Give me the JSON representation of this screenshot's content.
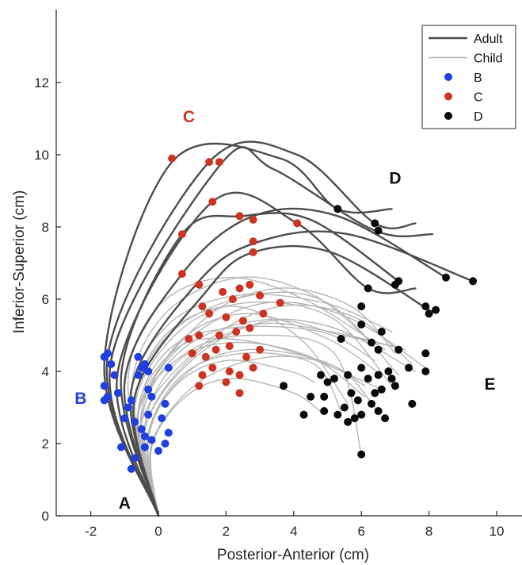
{
  "chart_data": {
    "type": "line",
    "title": "",
    "xlabel": "Posterior-Anterior (cm)",
    "ylabel": "Inferior-Superior (cm)",
    "xlim": [
      -2.9,
      10.8
    ],
    "ylim": [
      0,
      14
    ],
    "xticks": [
      -2,
      0,
      2,
      4,
      6,
      8,
      10
    ],
    "yticks": [
      0,
      2,
      4,
      6,
      8,
      10,
      12
    ],
    "grid": false,
    "legend_position": "top-right",
    "colors": {
      "adult": "#4d4d4d",
      "child": "#b5b5b5",
      "B": "#1f3fe0",
      "C": "#cc3322",
      "D": "#0a0a0a",
      "axis": "#262626"
    },
    "legend": [
      {
        "label": "Adult",
        "kind": "line",
        "color": "#4d4d4d"
      },
      {
        "label": "Child",
        "kind": "line",
        "color": "#b5b5b5"
      },
      {
        "label": "B",
        "kind": "dot",
        "color": "#1f3fe0"
      },
      {
        "label": "C",
        "kind": "dot",
        "color": "#cc3322"
      },
      {
        "label": "D",
        "kind": "dot",
        "color": "#0a0a0a"
      }
    ],
    "annotations": [
      {
        "text": "A",
        "x": -1.0,
        "y": 0.2,
        "color": "#111111"
      },
      {
        "text": "B",
        "x": -2.3,
        "y": 3.1,
        "color": "#1f3fe0"
      },
      {
        "text": "C",
        "x": 0.9,
        "y": 10.9,
        "color": "#cc3322"
      },
      {
        "text": "D",
        "x": 7.0,
        "y": 9.2,
        "color": "#111111"
      },
      {
        "text": "E",
        "x": 9.8,
        "y": 3.5,
        "color": "#111111"
      }
    ],
    "series": [
      {
        "group": "Adult",
        "x": [
          0,
          -1.6,
          0.4,
          3.6,
          5.3,
          6.9
        ],
        "y": [
          0,
          4.2,
          9.8,
          9.9,
          8.5,
          8.5
        ]
      },
      {
        "group": "Adult",
        "x": [
          0,
          -1.5,
          1.5,
          4.1,
          6.4,
          7.6
        ],
        "y": [
          0,
          4.4,
          9.8,
          10.0,
          8.1,
          8.1
        ]
      },
      {
        "group": "Adult",
        "x": [
          0,
          -1.4,
          1.9,
          3.4,
          6.4,
          8.1
        ],
        "y": [
          0,
          4.3,
          9.8,
          9.6,
          7.9,
          7.8
        ]
      },
      {
        "group": "Adult",
        "x": [
          0,
          -1.2,
          1.6,
          4.1,
          6.2,
          7.6
        ],
        "y": [
          0,
          4.0,
          8.7,
          8.1,
          6.3,
          6.3
        ]
      },
      {
        "group": "Adult",
        "x": [
          0,
          -1.1,
          0.7,
          2.5,
          4.5,
          7.1
        ],
        "y": [
          0,
          3.9,
          7.8,
          8.3,
          8.2,
          6.5
        ]
      },
      {
        "group": "Adult",
        "x": [
          0,
          -1.0,
          0.7,
          2.8,
          5.3,
          8.5
        ],
        "y": [
          0,
          3.7,
          6.7,
          8.3,
          8.3,
          6.6
        ]
      },
      {
        "group": "Adult",
        "x": [
          0,
          -0.8,
          1.2,
          3.0,
          5.6,
          9.3
        ],
        "y": [
          0,
          3.5,
          6.5,
          7.6,
          7.8,
          6.5
        ]
      },
      {
        "group": "Adult",
        "x": [
          0,
          -0.7,
          1.4,
          2.8,
          5.1,
          8.0
        ],
        "y": [
          0,
          3.3,
          6.2,
          7.3,
          7.3,
          5.7
        ]
      },
      {
        "group": "Child",
        "x": [
          0,
          -0.6,
          0.3,
          2.1,
          4.8,
          6.4
        ],
        "y": [
          0,
          2.8,
          4.6,
          5.2,
          5.1,
          4.3
        ]
      },
      {
        "group": "Child",
        "x": [
          0,
          -0.5,
          0.6,
          2.6,
          5.0,
          6.6
        ],
        "y": [
          0,
          2.6,
          4.8,
          5.6,
          4.9,
          3.9
        ]
      },
      {
        "group": "Child",
        "x": [
          0,
          -0.7,
          0.2,
          2.2,
          4.2,
          5.6
        ],
        "y": [
          0,
          3.0,
          5.0,
          5.8,
          4.9,
          3.1
        ]
      },
      {
        "group": "Child",
        "x": [
          0,
          -0.4,
          1.0,
          2.9,
          5.1,
          7.3
        ],
        "y": [
          0,
          2.4,
          4.4,
          5.3,
          5.1,
          4.6
        ]
      },
      {
        "group": "Child",
        "x": [
          0,
          -0.3,
          0.7,
          2.5,
          4.6,
          5.4
        ],
        "y": [
          0,
          2.2,
          3.9,
          4.5,
          4.2,
          2.9
        ]
      },
      {
        "group": "Child",
        "x": [
          0,
          -0.8,
          0.3,
          2.3,
          4.9,
          6.9
        ],
        "y": [
          0,
          3.3,
          5.3,
          6.1,
          5.9,
          5.1
        ]
      },
      {
        "group": "Child",
        "x": [
          0,
          -0.5,
          0.9,
          3.2,
          5.6,
          7.9
        ],
        "y": [
          0,
          2.9,
          4.9,
          5.9,
          5.5,
          4.1
        ]
      },
      {
        "group": "Child",
        "x": [
          0,
          -0.6,
          0.5,
          2.0,
          4.1,
          6.6
        ],
        "y": [
          0,
          2.9,
          4.6,
          4.9,
          4.5,
          3.5
        ]
      },
      {
        "group": "Child",
        "x": [
          0,
          -0.2,
          1.2,
          3.3,
          5.3,
          6.4
        ],
        "y": [
          0,
          2.0,
          3.7,
          4.4,
          4.1,
          3.0
        ]
      },
      {
        "group": "Child",
        "x": [
          0,
          -0.7,
          0.4,
          2.7,
          5.0,
          7.1
        ],
        "y": [
          0,
          3.1,
          5.1,
          6.1,
          5.9,
          3.9
        ]
      },
      {
        "group": "Child",
        "x": [
          0,
          -0.4,
          0.6,
          2.3,
          4.5,
          6.1
        ],
        "y": [
          0,
          2.5,
          4.3,
          4.8,
          4.4,
          3.3
        ]
      },
      {
        "group": "Child",
        "x": [
          0,
          -0.9,
          0.0,
          2.0,
          4.3,
          6.7
        ],
        "y": [
          0,
          3.6,
          5.8,
          6.6,
          6.0,
          4.6
        ]
      },
      {
        "group": "Child",
        "x": [
          0,
          -0.3,
          0.9,
          2.6,
          4.8,
          6.1
        ],
        "y": [
          0,
          2.3,
          4.0,
          4.6,
          4.3,
          3.6
        ]
      },
      {
        "group": "Child",
        "x": [
          0,
          -0.5,
          0.7,
          2.9,
          5.2,
          7.6
        ],
        "y": [
          0,
          2.7,
          4.6,
          5.4,
          5.2,
          4.0
        ]
      },
      {
        "group": "Child",
        "x": [
          0,
          -0.6,
          1.3,
          3.5,
          5.7,
          7.0
        ],
        "y": [
          0,
          2.9,
          5.4,
          6.3,
          5.8,
          4.5
        ]
      },
      {
        "group": "Child",
        "x": [
          0,
          -0.2,
          0.8,
          2.2,
          4.0,
          4.9
        ],
        "y": [
          0,
          1.9,
          3.3,
          3.8,
          3.4,
          2.8
        ]
      },
      {
        "group": "Child",
        "x": [
          0,
          -0.7,
          0.6,
          2.6,
          5.1,
          6.9
        ],
        "y": [
          0,
          3.0,
          5.1,
          5.9,
          5.5,
          3.6
        ]
      },
      {
        "group": "Child",
        "x": [
          0,
          -0.4,
          1.1,
          3.3,
          5.4,
          6.9
        ],
        "y": [
          0,
          2.4,
          4.4,
          5.4,
          5.0,
          4.7
        ]
      },
      {
        "group": "Child",
        "x": [
          0,
          -0.8,
          0.2,
          2.4,
          4.6,
          6.3
        ],
        "y": [
          0,
          3.4,
          5.6,
          6.6,
          6.1,
          4.8
        ]
      },
      {
        "group": "Child",
        "x": [
          0,
          -0.3,
          0.5,
          2.0,
          3.9,
          4.6
        ],
        "y": [
          0,
          2.1,
          3.6,
          4.3,
          4.0,
          3.7
        ]
      },
      {
        "group": "Child",
        "x": [
          0,
          -0.5,
          1.4,
          3.6,
          5.8,
          7.5
        ],
        "y": [
          0,
          2.6,
          4.8,
          5.8,
          5.5,
          4.2
        ]
      },
      {
        "group": "Child",
        "x": [
          0,
          -0.6,
          0.8,
          2.8,
          5.2,
          6.0
        ],
        "y": [
          0,
          2.8,
          4.5,
          5.0,
          4.5,
          1.7
        ]
      }
    ],
    "points": {
      "B": [
        [
          -1.6,
          4.4
        ],
        [
          -1.5,
          4.5
        ],
        [
          -1.4,
          4.2
        ],
        [
          -1.3,
          3.9
        ],
        [
          -1.6,
          3.6
        ],
        [
          -1.6,
          3.2
        ],
        [
          -1.5,
          3.3
        ],
        [
          -1.2,
          3.4
        ],
        [
          -0.6,
          4.4
        ],
        [
          -0.5,
          4.1
        ],
        [
          -0.4,
          4.2
        ],
        [
          -0.3,
          4.0
        ],
        [
          -0.6,
          3.9
        ],
        [
          0.3,
          4.1
        ],
        [
          -0.3,
          3.5
        ],
        [
          -0.2,
          3.3
        ],
        [
          0.2,
          3.1
        ],
        [
          -0.9,
          3.0
        ],
        [
          -0.8,
          3.2
        ],
        [
          -1.0,
          2.7
        ],
        [
          -0.7,
          2.6
        ],
        [
          -0.5,
          2.4
        ],
        [
          -0.3,
          2.8
        ],
        [
          0.1,
          2.7
        ],
        [
          0.3,
          2.3
        ],
        [
          0.2,
          2.0
        ],
        [
          -0.4,
          2.2
        ],
        [
          -1.1,
          1.9
        ],
        [
          -0.7,
          1.6
        ],
        [
          -0.8,
          1.3
        ],
        [
          -0.4,
          1.9
        ],
        [
          0.0,
          1.8
        ],
        [
          -0.2,
          2.1
        ]
      ],
      "C": [
        [
          0.4,
          9.9
        ],
        [
          1.5,
          9.8
        ],
        [
          1.8,
          9.8
        ],
        [
          1.6,
          8.7
        ],
        [
          2.4,
          8.3
        ],
        [
          2.8,
          8.2
        ],
        [
          4.1,
          8.1
        ],
        [
          0.7,
          7.8
        ],
        [
          2.8,
          7.6
        ],
        [
          2.8,
          7.3
        ],
        [
          0.7,
          6.7
        ],
        [
          1.2,
          6.4
        ],
        [
          2.4,
          6.3
        ],
        [
          2.7,
          6.4
        ],
        [
          1.9,
          6.2
        ],
        [
          2.2,
          6.0
        ],
        [
          3.0,
          6.1
        ],
        [
          3.6,
          5.9
        ],
        [
          1.3,
          5.8
        ],
        [
          1.5,
          5.6
        ],
        [
          2.0,
          5.5
        ],
        [
          2.5,
          5.4
        ],
        [
          3.1,
          5.6
        ],
        [
          2.7,
          5.2
        ],
        [
          2.3,
          5.1
        ],
        [
          1.8,
          5.0
        ],
        [
          1.2,
          5.0
        ],
        [
          0.9,
          4.9
        ],
        [
          1.0,
          4.5
        ],
        [
          1.4,
          4.4
        ],
        [
          1.7,
          4.6
        ],
        [
          2.1,
          4.7
        ],
        [
          2.6,
          4.4
        ],
        [
          3.0,
          4.6
        ],
        [
          2.8,
          4.1
        ],
        [
          2.4,
          3.9
        ],
        [
          2.1,
          4.0
        ],
        [
          1.6,
          4.1
        ],
        [
          1.3,
          3.9
        ],
        [
          2.0,
          3.7
        ],
        [
          1.2,
          3.6
        ],
        [
          2.4,
          3.4
        ]
      ],
      "D": [
        [
          5.3,
          8.5
        ],
        [
          6.4,
          8.1
        ],
        [
          6.5,
          7.9
        ],
        [
          8.5,
          6.6
        ],
        [
          9.3,
          6.5
        ],
        [
          7.1,
          6.5
        ],
        [
          7.0,
          6.4
        ],
        [
          7.9,
          5.8
        ],
        [
          8.2,
          5.7
        ],
        [
          8.0,
          5.6
        ],
        [
          6.2,
          6.3
        ],
        [
          6.0,
          5.8
        ],
        [
          6.0,
          5.3
        ],
        [
          6.6,
          5.1
        ],
        [
          6.3,
          4.8
        ],
        [
          6.5,
          4.6
        ],
        [
          7.1,
          4.6
        ],
        [
          5.4,
          4.9
        ],
        [
          7.4,
          4.1
        ],
        [
          7.9,
          4.0
        ],
        [
          7.9,
          4.5
        ],
        [
          6.8,
          4.0
        ],
        [
          6.5,
          3.9
        ],
        [
          6.2,
          3.8
        ],
        [
          6.6,
          3.5
        ],
        [
          6.4,
          3.4
        ],
        [
          6.3,
          3.1
        ],
        [
          6.5,
          2.9
        ],
        [
          5.9,
          3.2
        ],
        [
          5.7,
          3.4
        ],
        [
          5.5,
          3.0
        ],
        [
          5.2,
          3.8
        ],
        [
          5.0,
          3.7
        ],
        [
          4.8,
          3.9
        ],
        [
          4.9,
          3.3
        ],
        [
          4.5,
          3.3
        ],
        [
          3.7,
          3.6
        ],
        [
          4.3,
          2.8
        ],
        [
          4.9,
          2.9
        ],
        [
          5.3,
          2.8
        ],
        [
          5.6,
          2.6
        ],
        [
          6.0,
          2.8
        ],
        [
          6.7,
          2.7
        ],
        [
          7.5,
          3.1
        ],
        [
          5.8,
          2.7
        ],
        [
          6.0,
          4.1
        ],
        [
          5.6,
          3.9
        ],
        [
          6.0,
          1.7
        ],
        [
          7.0,
          3.6
        ],
        [
          6.9,
          3.8
        ]
      ]
    }
  }
}
